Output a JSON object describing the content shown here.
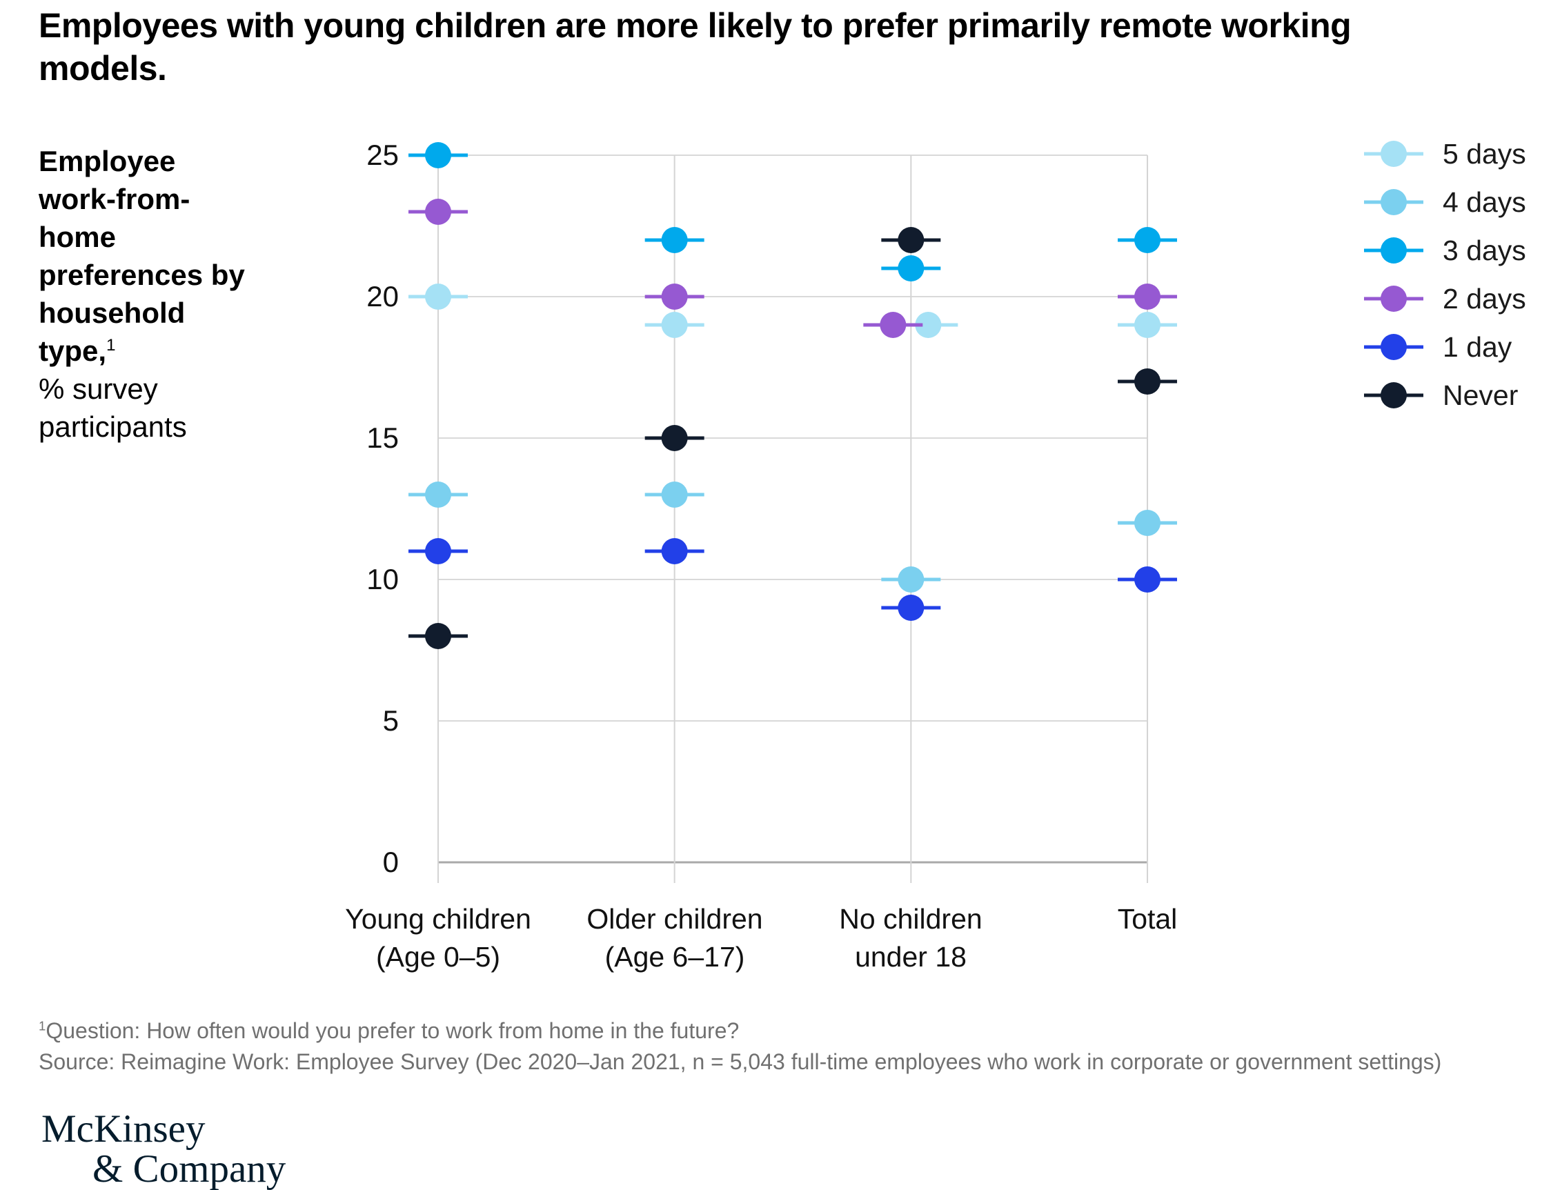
{
  "page": {
    "title": "Employees with young children are more likely to prefer primarily remote working models."
  },
  "chart_label": {
    "bold": "Employee work-from-home preferences by household type,",
    "footnote_marker": "1",
    "unit_line": "% survey participants"
  },
  "chart_data": {
    "type": "scatter",
    "title": "Employee work-from-home preferences by household type, % survey participants",
    "categories": [
      {
        "line1": "Young children",
        "line2": "(Age 0–5)"
      },
      {
        "line1": "Older children",
        "line2": "(Age 6–17)"
      },
      {
        "line1": "No children",
        "line2": "under 18"
      },
      {
        "line1": "Total",
        "line2": ""
      }
    ],
    "yticks": [
      0,
      5,
      10,
      15,
      20,
      25
    ],
    "ylim": [
      0,
      25
    ],
    "grid": "horizontal gridlines at 5-unit steps plus vertical column guides",
    "legend_position": "top-right",
    "series": [
      {
        "name": "5 days",
        "color": "#a5e1f5",
        "values": [
          20,
          19,
          19,
          19
        ],
        "dx": [
          0,
          0,
          25,
          0
        ]
      },
      {
        "name": "4 days",
        "color": "#7bd0ef",
        "values": [
          13,
          13,
          10,
          12
        ],
        "dx": [
          0,
          0,
          0,
          0
        ]
      },
      {
        "name": "3 days",
        "color": "#00a9ec",
        "values": [
          25,
          22,
          21,
          22
        ],
        "dx": [
          0,
          0,
          0,
          0
        ]
      },
      {
        "name": "2 days",
        "color": "#9659d2",
        "values": [
          23,
          20,
          19,
          20
        ],
        "dx": [
          0,
          0,
          -26,
          0
        ]
      },
      {
        "name": "1 day",
        "color": "#2240e8",
        "values": [
          11,
          11,
          9,
          10
        ],
        "dx": [
          0,
          0,
          0,
          0
        ]
      },
      {
        "name": "Never",
        "color": "#111c2d",
        "values": [
          8,
          15,
          22,
          17
        ],
        "dx": [
          0,
          0,
          0,
          0
        ]
      }
    ],
    "colors": {
      "gridline": "#d9d9d9",
      "axis_baseline": "#a9a9a9",
      "column_guide": "#d4d4d4"
    }
  },
  "footnote": {
    "marker": "1",
    "question": "Question: How often would you prefer to work from home in the future?",
    "source": "Source: Reimagine Work: Employee Survey (Dec 2020–Jan 2021, n = 5,043 full-time employees who work in corporate or government settings)"
  },
  "logo": {
    "line1": "McKinsey",
    "line2": "& Company"
  }
}
